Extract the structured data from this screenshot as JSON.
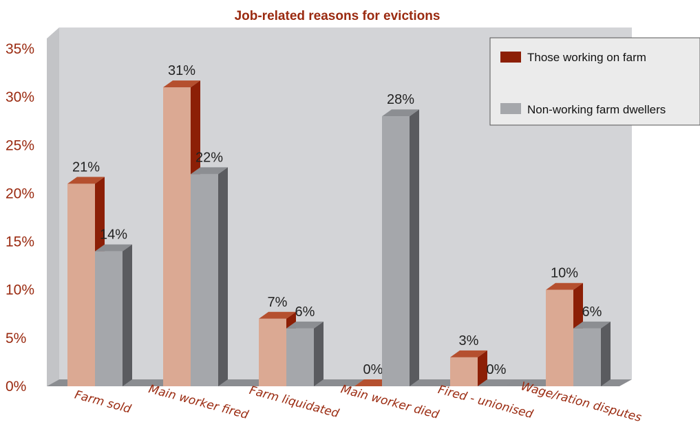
{
  "chart_data": {
    "type": "bar",
    "title": "Job-related reasons for evictions",
    "categories": [
      "Farm sold",
      "Main worker fired",
      "Farm liquidated",
      "Main worker died",
      "Fired - unionised",
      "Wage/ration disputes"
    ],
    "series": [
      {
        "name": "Those working on farm",
        "values": [
          21,
          31,
          7,
          0,
          3,
          10
        ],
        "labels": [
          "21%",
          "31%",
          "7%",
          "0%",
          "3%",
          "10%"
        ]
      },
      {
        "name": "Non-working farm dwellers",
        "values": [
          14,
          22,
          6,
          28,
          0,
          6
        ],
        "labels": [
          "14%",
          "22%",
          "6%",
          "28%",
          "0%",
          "6%"
        ]
      }
    ],
    "y_ticks": [
      "0%",
      "5%",
      "10%",
      "15%",
      "20%",
      "25%",
      "30%",
      "35%"
    ],
    "ylim": [
      0,
      35
    ],
    "legend_position": "top-right",
    "style": "3d-bar",
    "colors": {
      "series1_front": "#dba993",
      "series1_side": "#8c1f06",
      "series1_top": "#b5502f",
      "series2_front": "#a5a7ab",
      "series2_side": "#5a5b5f",
      "series2_top": "#8c8e92",
      "wall": "#d3d4d7",
      "floor": "#8b8d91",
      "text": "#9a2a10"
    }
  }
}
